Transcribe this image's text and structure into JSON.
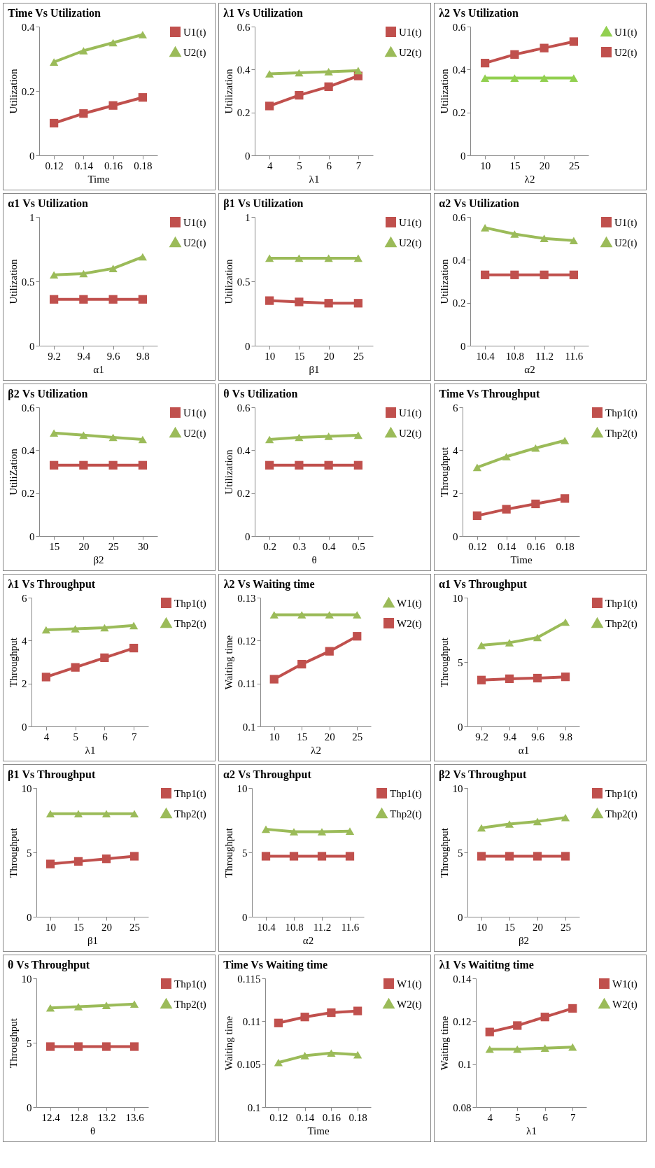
{
  "chart_data": [
    {
      "type": "line",
      "title": "Time Vs Utilization",
      "xlabel": "Time",
      "ylabel": "Utilization",
      "categories": [
        "0.12",
        "0.14",
        "0.16",
        "0.18"
      ],
      "ylim": [
        0,
        0.4
      ],
      "yticks": [
        0,
        0.2,
        0.4
      ],
      "legend": "top right",
      "series": [
        {
          "name": "U1(t)",
          "color": "#c0504d",
          "marker": "square",
          "values": [
            0.1,
            0.13,
            0.155,
            0.18
          ]
        },
        {
          "name": "U2(t)",
          "color": "#9bbb59",
          "marker": "triangle",
          "values": [
            0.29,
            0.325,
            0.35,
            0.375
          ]
        }
      ]
    },
    {
      "type": "line",
      "title": "λ1 Vs Utilization",
      "xlabel": "λ1",
      "ylabel": "Utilization",
      "categories": [
        "4",
        "5",
        "6",
        "7"
      ],
      "ylim": [
        0,
        0.6
      ],
      "yticks": [
        0,
        0.2,
        0.4,
        0.6
      ],
      "legend": "top right",
      "series": [
        {
          "name": "U1(t)",
          "color": "#c0504d",
          "marker": "square",
          "values": [
            0.23,
            0.28,
            0.32,
            0.37
          ]
        },
        {
          "name": "U2(t)",
          "color": "#9bbb59",
          "marker": "triangle",
          "values": [
            0.38,
            0.385,
            0.39,
            0.395
          ]
        }
      ]
    },
    {
      "type": "line",
      "title": "λ2  Vs  Utilization",
      "xlabel": "λ2",
      "ylabel": "Utilization",
      "categories": [
        "10",
        "15",
        "20",
        "25"
      ],
      "ylim": [
        0,
        0.6
      ],
      "yticks": [
        0,
        0.2,
        0.4,
        0.6
      ],
      "legend": "top right",
      "series": [
        {
          "name": "U1(t)",
          "color": "#92d050",
          "marker": "triangle",
          "values": [
            0.36,
            0.36,
            0.36,
            0.36
          ]
        },
        {
          "name": "U2(t)",
          "color": "#c0504d",
          "marker": "square",
          "values": [
            0.43,
            0.47,
            0.5,
            0.53
          ]
        }
      ]
    },
    {
      "type": "line",
      "title": "α1 Vs Utilization",
      "xlabel": "α1",
      "ylabel": "Utilization",
      "categories": [
        "9.2",
        "9.4",
        "9.6",
        "9.8"
      ],
      "ylim": [
        0,
        1
      ],
      "yticks": [
        0,
        0.5,
        1
      ],
      "legend": "top right",
      "series": [
        {
          "name": "U1(t)",
          "color": "#c0504d",
          "marker": "square",
          "values": [
            0.36,
            0.36,
            0.36,
            0.36
          ]
        },
        {
          "name": "U2(t)",
          "color": "#9bbb59",
          "marker": "triangle",
          "values": [
            0.55,
            0.56,
            0.6,
            0.69
          ]
        }
      ]
    },
    {
      "type": "line",
      "title": "β1 Vs Utilization",
      "xlabel": "β1",
      "ylabel": "Utilization",
      "categories": [
        "10",
        "15",
        "20",
        "25"
      ],
      "ylim": [
        0,
        1
      ],
      "yticks": [
        0,
        0.5,
        1
      ],
      "legend": "top right",
      "series": [
        {
          "name": "U1(t)",
          "color": "#c0504d",
          "marker": "square",
          "values": [
            0.35,
            0.34,
            0.33,
            0.33
          ]
        },
        {
          "name": "U2(t)",
          "color": "#9bbb59",
          "marker": "triangle",
          "values": [
            0.68,
            0.68,
            0.68,
            0.68
          ]
        }
      ]
    },
    {
      "type": "line",
      "title": "α2 Vs Utilization",
      "xlabel": "α2",
      "ylabel": "Utilization",
      "categories": [
        "10.4",
        "10.8",
        "11.2",
        "11.6"
      ],
      "ylim": [
        0,
        0.6
      ],
      "yticks": [
        0,
        0.2,
        0.4,
        0.6
      ],
      "legend": "top right",
      "series": [
        {
          "name": "U1(t)",
          "color": "#c0504d",
          "marker": "square",
          "values": [
            0.33,
            0.33,
            0.33,
            0.33
          ]
        },
        {
          "name": "U2(t)",
          "color": "#9bbb59",
          "marker": "triangle",
          "values": [
            0.55,
            0.52,
            0.5,
            0.49
          ]
        }
      ]
    },
    {
      "type": "line",
      "title": "β2 Vs Utilization",
      "xlabel": "β2",
      "ylabel": "UtiliZation",
      "categories": [
        "15",
        "20",
        "25",
        "30"
      ],
      "ylim": [
        0,
        0.6
      ],
      "yticks": [
        0,
        0.2,
        0.4,
        0.6
      ],
      "legend": "top right",
      "series": [
        {
          "name": "U1(t)",
          "color": "#c0504d",
          "marker": "square",
          "values": [
            0.33,
            0.33,
            0.33,
            0.33
          ]
        },
        {
          "name": "U2(t)",
          "color": "#9bbb59",
          "marker": "triangle",
          "values": [
            0.48,
            0.47,
            0.46,
            0.45
          ]
        }
      ]
    },
    {
      "type": "line",
      "title": "θ Vs Utilization",
      "xlabel": "θ",
      "ylabel": "Utilization",
      "categories": [
        "0.2",
        "0.3",
        "0.4",
        "0.5"
      ],
      "ylim": [
        0,
        0.6
      ],
      "yticks": [
        0,
        0.2,
        0.4,
        0.6
      ],
      "legend": "top right",
      "series": [
        {
          "name": "U1(t)",
          "color": "#c0504d",
          "marker": "square",
          "values": [
            0.33,
            0.33,
            0.33,
            0.33
          ]
        },
        {
          "name": "U2(t)",
          "color": "#9bbb59",
          "marker": "triangle",
          "values": [
            0.45,
            0.46,
            0.465,
            0.47
          ]
        }
      ]
    },
    {
      "type": "line",
      "title": "Time Vs Throughput",
      "xlabel": "Time",
      "ylabel": "Throughput",
      "categories": [
        "0.12",
        "0.14",
        "0.16",
        "0.18"
      ],
      "ylim": [
        0,
        6
      ],
      "yticks": [
        0,
        2,
        4,
        6
      ],
      "legend": "top right",
      "series": [
        {
          "name": "Thp1(t)",
          "color": "#c0504d",
          "marker": "square",
          "values": [
            0.95,
            1.25,
            1.5,
            1.75
          ]
        },
        {
          "name": "Thp2(t)",
          "color": "#9bbb59",
          "marker": "triangle",
          "values": [
            3.2,
            3.7,
            4.1,
            4.45
          ]
        }
      ]
    },
    {
      "type": "line",
      "title": "λ1 Vs Throughput",
      "xlabel": "λ1",
      "ylabel": "Throughput",
      "categories": [
        "4",
        "5",
        "6",
        "7"
      ],
      "ylim": [
        0,
        6
      ],
      "yticks": [
        0,
        2,
        4,
        6
      ],
      "legend": "top right",
      "series": [
        {
          "name": "Thp1(t)",
          "color": "#c0504d",
          "marker": "square",
          "values": [
            2.3,
            2.75,
            3.2,
            3.65
          ]
        },
        {
          "name": "Thp2(t)",
          "color": "#9bbb59",
          "marker": "triangle",
          "values": [
            4.5,
            4.55,
            4.6,
            4.7
          ]
        }
      ]
    },
    {
      "type": "line",
      "title": "λ2 Vs Waiting time",
      "xlabel": "λ2",
      "ylabel": "Waiting time",
      "categories": [
        "10",
        "15",
        "20",
        "25"
      ],
      "ylim": [
        0.1,
        0.13
      ],
      "yticks": [
        0.1,
        0.11,
        0.12,
        0.13
      ],
      "legend": "top right",
      "series": [
        {
          "name": "W1(t)",
          "color": "#9bbb59",
          "marker": "triangle",
          "values": [
            0.126,
            0.126,
            0.126,
            0.126
          ]
        },
        {
          "name": "W2(t)",
          "color": "#c0504d",
          "marker": "square",
          "values": [
            0.111,
            0.1145,
            0.1175,
            0.121
          ]
        }
      ]
    },
    {
      "type": "line",
      "title": "α1 Vs Throughput",
      "xlabel": "α1",
      "ylabel": "Throughput",
      "categories": [
        "9.2",
        "9.4",
        "9.6",
        "9.8"
      ],
      "ylim": [
        0,
        10
      ],
      "yticks": [
        0,
        5,
        10
      ],
      "legend": "top right",
      "series": [
        {
          "name": "Thp1(t)",
          "color": "#c0504d",
          "marker": "square",
          "values": [
            3.6,
            3.7,
            3.75,
            3.85
          ]
        },
        {
          "name": "Thp2(t)",
          "color": "#9bbb59",
          "marker": "triangle",
          "values": [
            6.3,
            6.5,
            6.9,
            8.1
          ]
        }
      ]
    },
    {
      "type": "line",
      "title": "β1 Vs Throughput",
      "xlabel": "β1",
      "ylabel": "Throughput",
      "categories": [
        "10",
        "15",
        "20",
        "25"
      ],
      "ylim": [
        0,
        10
      ],
      "yticks": [
        0,
        5,
        10
      ],
      "legend": "top right",
      "series": [
        {
          "name": "Thp1(t)",
          "color": "#c0504d",
          "marker": "square",
          "values": [
            4.1,
            4.3,
            4.5,
            4.7
          ]
        },
        {
          "name": "Thp2(t)",
          "color": "#9bbb59",
          "marker": "triangle",
          "values": [
            8,
            8,
            8,
            8
          ]
        }
      ]
    },
    {
      "type": "line",
      "title": "α2 Vs Throughput",
      "xlabel": "α2",
      "ylabel": "Throughput",
      "categories": [
        "10.4",
        "10.8",
        "11.2",
        "11.6"
      ],
      "ylim": [
        0,
        10
      ],
      "yticks": [
        0,
        5,
        10
      ],
      "legend": "top right",
      "series": [
        {
          "name": "Thp1(t)",
          "color": "#c0504d",
          "marker": "square",
          "values": [
            4.7,
            4.7,
            4.7,
            4.7
          ]
        },
        {
          "name": "Thp2(t)",
          "color": "#9bbb59",
          "marker": "triangle",
          "values": [
            6.8,
            6.6,
            6.6,
            6.65
          ]
        }
      ]
    },
    {
      "type": "line",
      "title": "β2 Vs Throughput",
      "xlabel": "β2",
      "ylabel": "Throughput",
      "categories": [
        "10",
        "15",
        "20",
        "25"
      ],
      "ylim": [
        0,
        10
      ],
      "yticks": [
        0,
        5,
        10
      ],
      "legend": "top right",
      "series": [
        {
          "name": "Thp1(t)",
          "color": "#c0504d",
          "marker": "square",
          "values": [
            4.7,
            4.7,
            4.7,
            4.7
          ]
        },
        {
          "name": "Thp2(t)",
          "color": "#9bbb59",
          "marker": "triangle",
          "values": [
            6.9,
            7.2,
            7.4,
            7.7
          ]
        }
      ]
    },
    {
      "type": "line",
      "title": "θ  Vs Throughput",
      "xlabel": "θ",
      "ylabel": "Throughput",
      "categories": [
        "12.4",
        "12.8",
        "13.2",
        "13.6"
      ],
      "ylim": [
        0,
        10
      ],
      "yticks": [
        0,
        5,
        10
      ],
      "legend": "top right",
      "series": [
        {
          "name": "Thp1(t)",
          "color": "#c0504d",
          "marker": "square",
          "values": [
            4.7,
            4.7,
            4.7,
            4.7
          ]
        },
        {
          "name": "Thp2(t)",
          "color": "#9bbb59",
          "marker": "triangle",
          "values": [
            7.7,
            7.8,
            7.9,
            8
          ]
        }
      ]
    },
    {
      "type": "line",
      "title": "Time Vs Waiting time",
      "xlabel": "Time",
      "ylabel": "Waiting time",
      "categories": [
        "0.12",
        "0.14",
        "0.16",
        "0.18"
      ],
      "ylim": [
        0.1,
        0.115
      ],
      "yticks": [
        0.1,
        0.105,
        0.11,
        0.115
      ],
      "legend": "top right",
      "series": [
        {
          "name": "W1(t)",
          "color": "#c0504d",
          "marker": "square",
          "values": [
            0.1098,
            0.1105,
            0.111,
            0.1112
          ]
        },
        {
          "name": "W2(t)",
          "color": "#9bbb59",
          "marker": "triangle",
          "values": [
            0.1052,
            0.106,
            0.1063,
            0.1061
          ]
        }
      ]
    },
    {
      "type": "line",
      "title": "λ1 Vs Waititng time",
      "xlabel": "λ1",
      "ylabel": "Waiting time",
      "categories": [
        "4",
        "5",
        "6",
        "7"
      ],
      "ylim": [
        0.08,
        0.14
      ],
      "yticks": [
        0.08,
        0.1,
        0.12,
        0.14
      ],
      "legend": "top right",
      "series": [
        {
          "name": "W1(t)",
          "color": "#c0504d",
          "marker": "square",
          "values": [
            0.115,
            0.118,
            0.122,
            0.126
          ]
        },
        {
          "name": "W2(t)",
          "color": "#9bbb59",
          "marker": "triangle",
          "values": [
            0.107,
            0.107,
            0.1075,
            0.108
          ]
        }
      ]
    }
  ]
}
